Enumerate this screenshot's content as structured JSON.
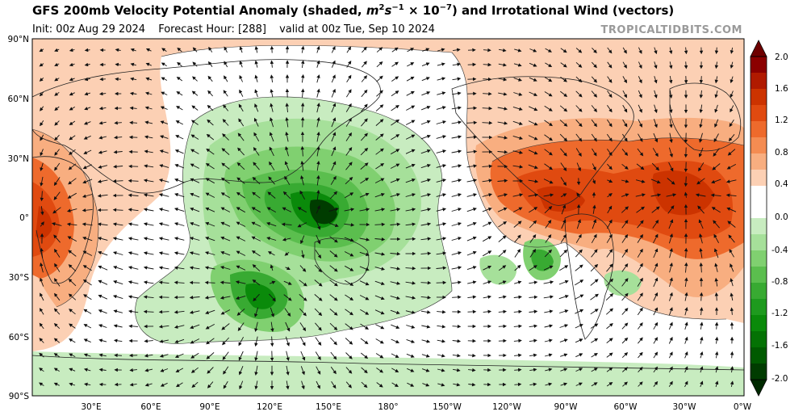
{
  "title": {
    "prefix": "GFS 200mb Velocity Potential Anomaly (shaded, ",
    "unit_m": "m",
    "unit_m_exp": "2",
    "unit_s": "s",
    "unit_s_exp": "−1",
    "unit_times": " × 10",
    "unit_pow": "−7",
    "suffix": ") and Irrotational Wind (vectors)"
  },
  "init": {
    "init_text": "Init: 00z Aug 29 2024",
    "forecast_hour": "Forecast Hour: [288]",
    "valid_text": "valid at 00z Tue, Sep 10 2024"
  },
  "credit": "TROPICALTIDBITS.COM",
  "map": {
    "lat_labels": [
      "90°N",
      "60°N",
      "30°N",
      "0°",
      "30°S",
      "60°S",
      "90°S"
    ],
    "lon_labels": [
      "30°E",
      "60°E",
      "90°E",
      "120°E",
      "150°E",
      "180°",
      "150°W",
      "120°W",
      "90°W",
      "60°W",
      "30°W",
      "0°W"
    ]
  },
  "colorbar": {
    "tick_labels": [
      "2.0",
      "1.6",
      "1.2",
      "0.8",
      "0.4",
      "0.0",
      "-0.4",
      "-0.8",
      "-1.2",
      "-1.6",
      "-2.0"
    ],
    "colors": [
      "#8b0000",
      "#b01a00",
      "#cc3300",
      "#e04a10",
      "#ee6a2c",
      "#f48c52",
      "#f8ae80",
      "#fcd0b4",
      "#ffffff",
      "#ffffff",
      "#c8ecc0",
      "#a6e09a",
      "#80d070",
      "#5bbe4e",
      "#38aa32",
      "#1e9a1e",
      "#0a8a0a",
      "#047204",
      "#005a00",
      "#003c00"
    ]
  }
}
